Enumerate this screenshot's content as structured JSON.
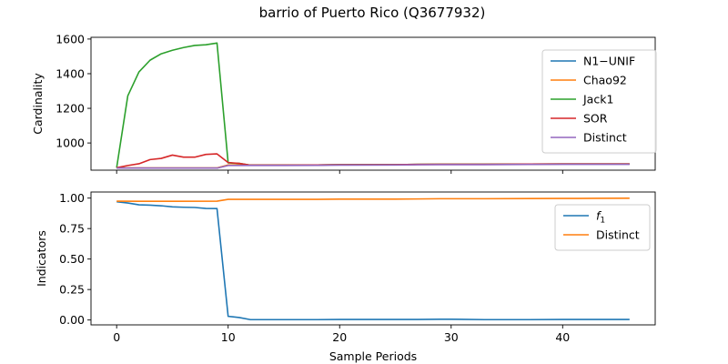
{
  "figure_title": "barrio of Puerto Rico (Q3677932)",
  "chart_data": [
    {
      "type": "line",
      "ylabel": "Cardinality",
      "xlim": [
        -2.3,
        48.3
      ],
      "ylim": [
        843,
        1610
      ],
      "yticks": [
        1000,
        1200,
        1400,
        1600
      ],
      "legend_position": "top-right",
      "series": [
        {
          "name": "N1−UNIF",
          "color": "#1f77b4",
          "x": [
            0,
            1,
            2,
            3,
            4,
            5,
            6,
            7,
            8,
            9,
            10,
            12,
            15,
            18,
            20,
            25,
            27,
            29,
            33,
            37,
            40,
            43,
            46
          ],
          "y": [
            855,
            855,
            855,
            855,
            855,
            855,
            855,
            855,
            855,
            855,
            872,
            872,
            872,
            873,
            874,
            875,
            876,
            876,
            877,
            878,
            878,
            878,
            878
          ]
        },
        {
          "name": "Chao92",
          "color": "#ff7f0e",
          "x": [
            0,
            1,
            2,
            3,
            4,
            5,
            6,
            7,
            8,
            9,
            10,
            12,
            15,
            18,
            20,
            25,
            27,
            29,
            33,
            37,
            40,
            43,
            46
          ],
          "y": [
            856,
            856,
            856,
            856,
            856,
            856,
            856,
            856,
            856,
            856,
            873,
            872,
            872,
            873,
            874,
            875,
            876,
            877,
            877,
            878,
            879,
            879,
            879
          ]
        },
        {
          "name": "Jack1",
          "color": "#2ca02c",
          "x": [
            0,
            1,
            2,
            3,
            4,
            5,
            6,
            7,
            8,
            9,
            10,
            11,
            12,
            15,
            18,
            20,
            25,
            27,
            29,
            33,
            37,
            40,
            43,
            46
          ],
          "y": [
            857,
            1272,
            1410,
            1478,
            1515,
            1535,
            1551,
            1563,
            1567,
            1577,
            885,
            882,
            872,
            872,
            873,
            874,
            875,
            876,
            877,
            877,
            878,
            879,
            879,
            879
          ]
        },
        {
          "name": "SOR",
          "color": "#d62728",
          "x": [
            0,
            1,
            2,
            3,
            4,
            5,
            6,
            7,
            8,
            9,
            10,
            11,
            12,
            15,
            18,
            20,
            25,
            27,
            29,
            33,
            37,
            40,
            43,
            46
          ],
          "y": [
            857,
            870,
            880,
            904,
            911,
            930,
            918,
            918,
            934,
            937,
            887,
            882,
            872,
            872,
            873,
            874,
            875,
            876,
            877,
            877,
            878,
            879,
            879,
            879
          ]
        },
        {
          "name": "Distinct",
          "color": "#9467bd",
          "x": [
            0,
            1,
            2,
            3,
            4,
            5,
            6,
            7,
            8,
            9,
            10,
            12,
            15,
            18,
            20,
            25,
            27,
            29,
            33,
            37,
            40,
            43,
            46
          ],
          "y": [
            855,
            855,
            855,
            855,
            855,
            855,
            855,
            855,
            855,
            855,
            870,
            870,
            870,
            871,
            872,
            873,
            874,
            875,
            875,
            876,
            877,
            877,
            877
          ]
        }
      ]
    },
    {
      "type": "line",
      "xlabel": "Sample Periods",
      "ylabel": "Indicators",
      "xlim": [
        -2.3,
        48.3
      ],
      "ylim": [
        -0.04,
        1.05
      ],
      "xticks": [
        0,
        10,
        20,
        30,
        40
      ],
      "yticks": [
        "0.00",
        "0.25",
        "0.50",
        "0.75",
        "1.00"
      ],
      "legend_position": "top-right",
      "series": [
        {
          "name": "f1",
          "color": "#1f77b4",
          "x": [
            0,
            1,
            2,
            3,
            4,
            5,
            6,
            7,
            8,
            9,
            10,
            11,
            12,
            15,
            18,
            20,
            25,
            27,
            29,
            30,
            33,
            37,
            40,
            43,
            46
          ],
          "y": [
            0.97,
            0.96,
            0.945,
            0.942,
            0.937,
            0.928,
            0.925,
            0.923,
            0.915,
            0.914,
            0.03,
            0.02,
            0.003,
            0.003,
            0.003,
            0.004,
            0.004,
            0.004,
            0.006,
            0.006,
            0.003,
            0.003,
            0.004,
            0.004,
            0.004
          ]
        },
        {
          "name": "Distinct",
          "color": "#ff7f0e",
          "x": [
            0,
            2,
            5,
            9,
            10,
            12,
            15,
            18,
            20,
            25,
            27,
            29,
            33,
            37,
            40,
            43,
            46
          ],
          "y": [
            0.975,
            0.974,
            0.974,
            0.975,
            0.99,
            0.99,
            0.99,
            0.99,
            0.992,
            0.992,
            0.993,
            0.995,
            0.995,
            0.996,
            0.997,
            0.998,
            0.999
          ]
        }
      ]
    }
  ]
}
